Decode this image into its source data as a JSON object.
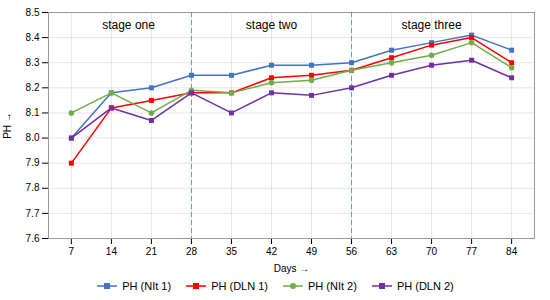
{
  "chart_data": {
    "type": "line",
    "x_label": "Days",
    "y_label": "PH",
    "x": [
      7,
      14,
      21,
      28,
      35,
      42,
      49,
      56,
      63,
      70,
      77,
      84
    ],
    "series": [
      {
        "name": "PH (NIt 1)",
        "color": "#4472C4",
        "marker": "square",
        "values": [
          8.0,
          8.18,
          8.2,
          8.25,
          8.25,
          8.29,
          8.29,
          8.3,
          8.35,
          8.38,
          8.41,
          8.35
        ]
      },
      {
        "name": "PH (DLN 1)",
        "color": "#FF0000",
        "marker": "square",
        "values": [
          7.9,
          8.12,
          8.15,
          8.18,
          8.18,
          8.24,
          8.25,
          8.27,
          8.32,
          8.37,
          8.4,
          8.3
        ]
      },
      {
        "name": "PH (NIt 2)",
        "color": "#70AD47",
        "marker": "circle",
        "values": [
          8.1,
          8.18,
          8.1,
          8.19,
          8.18,
          8.22,
          8.23,
          8.27,
          8.3,
          8.33,
          8.38,
          8.28
        ]
      },
      {
        "name": "PH (DLN 2)",
        "color": "#7030A0",
        "marker": "square",
        "values": [
          8.0,
          8.12,
          8.07,
          8.18,
          8.1,
          8.18,
          8.17,
          8.2,
          8.25,
          8.29,
          8.31,
          8.24
        ]
      }
    ],
    "reference_lines": {
      "x": [
        28,
        56
      ],
      "color": "#5B9BD5",
      "line_style": "dashed"
    },
    "annotations": [
      {
        "text": "stage one",
        "x": 17,
        "y": 8.47
      },
      {
        "text": "stage two",
        "x": 42,
        "y": 8.47
      },
      {
        "text": "stage three",
        "x": 70,
        "y": 8.47
      }
    ],
    "xlim": [
      3,
      88
    ],
    "xticks": [
      7,
      14,
      21,
      28,
      35,
      42,
      49,
      56,
      63,
      70,
      77,
      84
    ],
    "ylim": [
      7.6,
      8.5
    ],
    "yticks": [
      7.6,
      7.7,
      7.8,
      7.9,
      {
        "value": 8,
        "label": "8.0"
      },
      8.1,
      8.2,
      8.3,
      8.4,
      8.5
    ],
    "grid": true,
    "legend": "bottom"
  }
}
